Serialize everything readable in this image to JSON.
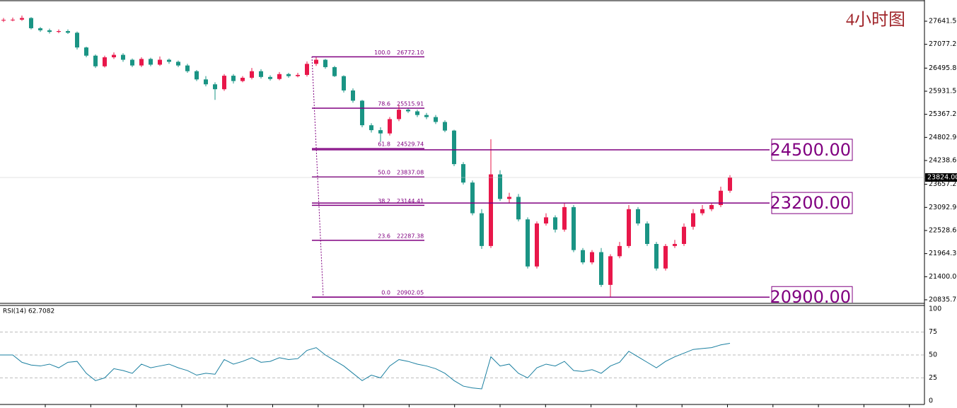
{
  "chart_data": {
    "type": "candlestick",
    "timeframe_label": "4小时图",
    "up_color": "#e8174a",
    "down_color": "#1a9484",
    "ylim": [
      20766,
      28160
    ],
    "yticks": [
      {
        "value": 27641.5,
        "label": "27641.50"
      },
      {
        "value": 27077.2,
        "label": "27077.20"
      },
      {
        "value": 26495.8,
        "label": "26495.80"
      },
      {
        "value": 25931.5,
        "label": "25931.50"
      },
      {
        "value": 25367.2,
        "label": "25367.20"
      },
      {
        "value": 24802.9,
        "label": "24802.90"
      },
      {
        "value": 24238.6,
        "label": "24238.60"
      },
      {
        "value": 23657.2,
        "label": "23657.20"
      },
      {
        "value": 23092.9,
        "label": "23092.90"
      },
      {
        "value": 22528.6,
        "label": "22528.60"
      },
      {
        "value": 21964.3,
        "label": "21964.30"
      },
      {
        "value": 21400,
        "label": "21400.00"
      },
      {
        "value": 20835.7,
        "label": "20835.70"
      }
    ],
    "last_price": {
      "value": 23824,
      "label": "23824.00"
    },
    "open": [
      27660,
      27676,
      27680,
      27720,
      27470,
      27420,
      27380,
      27400,
      27360,
      27000,
      26800,
      26540,
      26760,
      26820,
      26700,
      26560,
      26720,
      26580,
      26700,
      26650,
      26560,
      26420,
      26220,
      26100,
      25980,
      26310,
      26180,
      26260,
      26420,
      26280,
      26230,
      26350,
      26300,
      26330,
      26600,
      26700,
      26520,
      26300,
      25950,
      25700,
      25100,
      24980,
      24900,
      25250,
      25480,
      25440,
      25350,
      25300,
      25180,
      24970,
      24150,
      23700,
      22950,
      22150,
      23900,
      23300,
      23350,
      22800,
      21650,
      22700,
      22850,
      22550,
      23100,
      22050,
      21750,
      22000,
      21200,
      21900,
      22150,
      23050,
      22700,
      22200,
      21600,
      22150,
      22200,
      22620,
      22950,
      23050,
      23150,
      23500
    ],
    "high": [
      27720,
      27730,
      27780,
      27740,
      27500,
      27460,
      27440,
      27440,
      27390,
      27020,
      26830,
      26800,
      26880,
      26860,
      26730,
      26760,
      26750,
      26780,
      26730,
      26680,
      26600,
      26450,
      26300,
      26150,
      26350,
      26350,
      26300,
      26500,
      26470,
      26320,
      26400,
      26380,
      26380,
      26660,
      26772,
      26720,
      26550,
      26320,
      26000,
      25720,
      25150,
      25050,
      25300,
      25600,
      25530,
      25480,
      25400,
      25350,
      25220,
      24990,
      24200,
      23750,
      23050,
      24758,
      24000,
      23450,
      23420,
      22850,
      22750,
      22950,
      22900,
      23200,
      23150,
      22100,
      22050,
      22100,
      21950,
      22250,
      23150,
      23100,
      22750,
      22250,
      22200,
      22300,
      22700,
      23050,
      23150,
      23200,
      23600,
      23880
    ],
    "low": [
      27620,
      27640,
      27650,
      27440,
      27380,
      27340,
      27350,
      27330,
      26950,
      26760,
      26500,
      26510,
      26720,
      26650,
      26520,
      26520,
      26540,
      26550,
      26600,
      26520,
      26380,
      26180,
      26050,
      25720,
      25940,
      26120,
      26150,
      26220,
      26240,
      26190,
      26200,
      26260,
      26270,
      26290,
      26550,
      26480,
      26280,
      25900,
      25650,
      25050,
      24920,
      24700,
      24850,
      25200,
      25400,
      25300,
      25250,
      25130,
      24930,
      24100,
      23650,
      22900,
      22080,
      22100,
      23250,
      23200,
      22750,
      21600,
      21600,
      22650,
      22480,
      22500,
      22000,
      21700,
      21700,
      21150,
      20902,
      21850,
      22100,
      22650,
      22150,
      21550,
      21550,
      22100,
      22150,
      22550,
      22900,
      23000,
      23100,
      23450
    ],
    "close": [
      27676,
      27680,
      27720,
      27470,
      27420,
      27380,
      27400,
      27360,
      27000,
      26800,
      26540,
      26760,
      26820,
      26700,
      26560,
      26720,
      26580,
      26700,
      26650,
      26560,
      26420,
      26220,
      26100,
      25980,
      26310,
      26180,
      26260,
      26420,
      26280,
      26230,
      26350,
      26300,
      26330,
      26600,
      26700,
      26520,
      26300,
      25950,
      25700,
      25100,
      24980,
      24900,
      25250,
      25480,
      25440,
      25350,
      25300,
      25180,
      24970,
      24150,
      23700,
      22950,
      22150,
      23900,
      23300,
      23350,
      22800,
      21650,
      22700,
      22850,
      22550,
      23100,
      22050,
      21750,
      22000,
      21200,
      21900,
      22150,
      23050,
      22700,
      22200,
      21600,
      22150,
      22200,
      22620,
      22950,
      23050,
      23150,
      23500,
      23824
    ],
    "fibonacci": [
      {
        "ratio": {
          "value": 100,
          "label": "100.0"
        },
        "price": {
          "value": 26772.1,
          "label": "26772.10"
        }
      },
      {
        "ratio": {
          "value": 78.6,
          "label": "78.6"
        },
        "price": {
          "value": 25515.91,
          "label": "25515.91"
        }
      },
      {
        "ratio": {
          "value": 61.8,
          "label": "61.8"
        },
        "price": {
          "value": 24529.74,
          "label": "24529.74"
        }
      },
      {
        "ratio": {
          "value": 50,
          "label": "50.0"
        },
        "price": {
          "value": 23837.08,
          "label": "23837.08"
        }
      },
      {
        "ratio": {
          "value": 38.2,
          "label": "38.2"
        },
        "price": {
          "value": 23144.41,
          "label": "23144.41"
        }
      },
      {
        "ratio": {
          "value": 23.6,
          "label": "23.6"
        },
        "price": {
          "value": 22287.38,
          "label": "22287.38"
        }
      },
      {
        "ratio": {
          "value": 0,
          "label": "0.0"
        },
        "price": {
          "value": 20902.05,
          "label": "20902.05"
        }
      }
    ],
    "fib_color": "#800080",
    "levels": [
      {
        "value": 24500,
        "label": "24500.00"
      },
      {
        "value": 23200,
        "label": "23200.00"
      },
      {
        "value": 20900,
        "label": "20900.00"
      }
    ],
    "rsi": {
      "label": "RSI(14) 62.7082",
      "color": "#1a7fa0",
      "ylim": [
        -4,
        104
      ],
      "yticks": [
        100,
        75,
        50,
        25,
        0
      ],
      "values": [
        50,
        50,
        42,
        39,
        38,
        40,
        36,
        42,
        43,
        30,
        22,
        25,
        35,
        33,
        30,
        40,
        36,
        38,
        40,
        36,
        33,
        28,
        30,
        29,
        45,
        40,
        43,
        47,
        42,
        43,
        47,
        45,
        46,
        55,
        58,
        50,
        44,
        38,
        30,
        22,
        28,
        25,
        38,
        45,
        43,
        40,
        38,
        35,
        30,
        22,
        16,
        14,
        13,
        48,
        38,
        40,
        30,
        25,
        36,
        40,
        38,
        43,
        33,
        32,
        34,
        30,
        38,
        42,
        54,
        48,
        42,
        36,
        43,
        48,
        52,
        56,
        57,
        58,
        61,
        62.7082
      ]
    }
  }
}
